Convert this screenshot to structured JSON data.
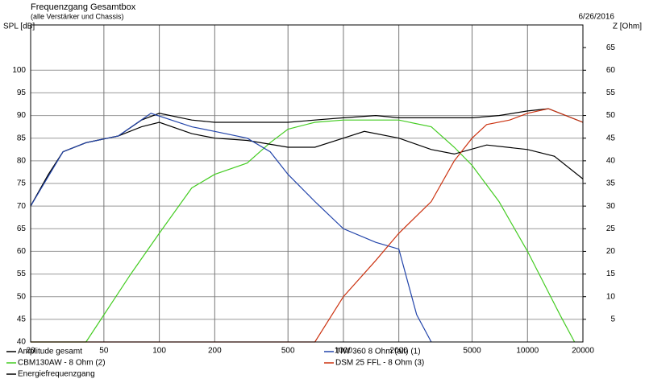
{
  "chart_data": {
    "type": "line",
    "title": "Frequenzgang Gesamtbox",
    "subtitle": "(alle Verstärker und Chassis)",
    "date": "6/26/2016",
    "ylabel": "SPL [dB]",
    "y2label": "Z [Ohm]",
    "log_x": true,
    "grid": true,
    "xlim": [
      20,
      20000
    ],
    "xticks": [
      20,
      50,
      100,
      200,
      500,
      1000,
      2000,
      5000,
      10000,
      20000
    ],
    "ylim": [
      40,
      110
    ],
    "yticks": [
      40,
      45,
      50,
      55,
      60,
      65,
      70,
      75,
      80,
      85,
      90,
      95,
      100
    ],
    "y2lim": [
      0,
      70
    ],
    "y2ticks": [
      5,
      10,
      15,
      20,
      25,
      30,
      35,
      40,
      45,
      50,
      55,
      60,
      65
    ],
    "series": [
      {
        "name": "Amplitude gesamt",
        "color": "#000000",
        "x": [
          20,
          25,
          30,
          40,
          60,
          80,
          100,
          150,
          200,
          300,
          500,
          700,
          1000,
          1500,
          2000,
          3000,
          5000,
          7000,
          10000,
          13000,
          20000
        ],
        "values": [
          70,
          77,
          82,
          84,
          85.5,
          89,
          90.5,
          89,
          88.5,
          88.5,
          88.5,
          89,
          89.5,
          90,
          89.5,
          89.5,
          89.5,
          90,
          91,
          91.5,
          88.5
        ]
      },
      {
        "name": "CBM130AW - 8 Ohm (2)",
        "color": "#44cc22",
        "x": [
          20,
          40,
          70,
          100,
          150,
          200,
          300,
          400,
          500,
          700,
          1000,
          2000,
          3000,
          4000,
          5000,
          7000,
          10000,
          15000,
          18000
        ],
        "values": [
          40,
          40,
          55,
          64,
          74,
          77,
          79.5,
          84,
          87,
          88.5,
          89,
          89,
          87.5,
          83,
          79,
          71,
          60,
          46,
          40
        ]
      },
      {
        "name": "Energiefrequenzgang",
        "color": "#000000",
        "x": [
          20,
          25,
          30,
          40,
          60,
          80,
          100,
          150,
          200,
          300,
          500,
          700,
          1000,
          1300,
          2000,
          3000,
          4000,
          6000,
          10000,
          14000,
          20000
        ],
        "values": [
          70,
          77,
          82,
          84,
          85.5,
          87.5,
          88.5,
          86,
          85,
          84.5,
          83,
          83,
          85,
          86.5,
          85,
          82.5,
          81.5,
          83.5,
          82.5,
          81,
          76
        ]
      },
      {
        "name": "TIW 360 8 Ohm (alt) (1)",
        "color": "#2244aa",
        "x": [
          20,
          30,
          40,
          60,
          90,
          150,
          200,
          300,
          400,
          500,
          700,
          1000,
          1500,
          2000,
          2500,
          3000
        ],
        "values": [
          70,
          82,
          84,
          85.5,
          90.5,
          87.5,
          86.5,
          85,
          82,
          77,
          71,
          65,
          62,
          60.5,
          46,
          40
        ]
      },
      {
        "name": "DSM 25 FFL - 8 Ohm (3)",
        "color": "#cc3311",
        "x": [
          20,
          700,
          1000,
          1500,
          2000,
          3000,
          4000,
          5000,
          6000,
          8000,
          10000,
          13000,
          20000
        ],
        "values": [
          40,
          40,
          50,
          58,
          64,
          71,
          80,
          85,
          88,
          89,
          90.5,
          91.5,
          88.5
        ]
      }
    ]
  }
}
